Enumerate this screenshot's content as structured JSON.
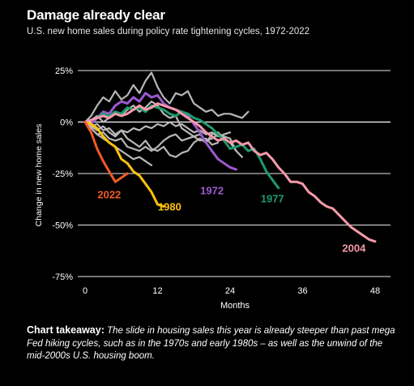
{
  "header": {
    "title": "Damage already clear",
    "subtitle": "U.S. new home sales during policy rate tightening cycles, 1972-2022"
  },
  "takeaway": {
    "label": "Chart takeaway:",
    "text": "The slide in housing sales this year is already steeper than past mega Fed hiking cycles, such as in the 1970s and early 1980s – as well as the unwind of the mid-2000s U.S. housing boom."
  },
  "chart_data": {
    "type": "line",
    "title": "Damage already clear",
    "subtitle": "U.S. new home sales during policy rate tightening cycles, 1972-2022",
    "xlabel": "Months",
    "ylabel": "Change in new home sales",
    "xlim": [
      0,
      49
    ],
    "ylim": [
      -75,
      27
    ],
    "x_ticks": [
      0,
      12,
      24,
      36,
      48
    ],
    "y_ticks": [
      25,
      0,
      -25,
      -50,
      -75
    ],
    "y_tick_labels": [
      "25%",
      "0%",
      "-25%",
      "-50%",
      "-75%"
    ],
    "grid": true,
    "colors": {
      "background": "#000000",
      "gray": "#b8b8b8",
      "grid": "#ffffff"
    },
    "series": [
      {
        "name": "",
        "color": "#b8b8b8",
        "highlight": false,
        "points": [
          [
            0,
            0
          ],
          [
            1,
            3
          ],
          [
            2,
            8
          ],
          [
            3,
            12
          ],
          [
            4,
            10
          ],
          [
            5,
            15
          ],
          [
            6,
            11
          ],
          [
            7,
            13
          ],
          [
            8,
            18
          ],
          [
            9,
            14
          ],
          [
            10,
            20
          ],
          [
            11,
            24
          ],
          [
            12,
            17
          ],
          [
            13,
            12
          ],
          [
            14,
            9
          ],
          [
            15,
            14
          ],
          [
            16,
            13
          ],
          [
            17,
            15
          ],
          [
            18,
            9
          ],
          [
            19,
            7
          ],
          [
            20,
            5
          ],
          [
            21,
            6
          ],
          [
            22,
            3
          ],
          [
            23,
            4
          ],
          [
            24,
            4
          ],
          [
            25,
            3
          ],
          [
            26,
            2
          ],
          [
            27,
            5
          ]
        ]
      },
      {
        "name": "",
        "color": "#b8b8b8",
        "highlight": false,
        "points": [
          [
            0,
            0
          ],
          [
            1,
            -2
          ],
          [
            2,
            -4
          ],
          [
            3,
            -2
          ],
          [
            4,
            -5
          ],
          [
            5,
            -7
          ],
          [
            6,
            -4
          ],
          [
            7,
            -8
          ],
          [
            8,
            -10
          ],
          [
            9,
            -12
          ],
          [
            10,
            -9
          ],
          [
            11,
            -13
          ],
          [
            12,
            -14
          ],
          [
            13,
            -12
          ],
          [
            14,
            -16
          ],
          [
            15,
            -17
          ],
          [
            16,
            -15
          ],
          [
            17,
            -14
          ],
          [
            18,
            -10
          ],
          [
            19,
            -8
          ],
          [
            20,
            -10
          ],
          [
            21,
            -6
          ],
          [
            22,
            -5
          ],
          [
            23,
            -8
          ],
          [
            24,
            -10
          ],
          [
            25,
            -14
          ]
        ]
      },
      {
        "name": "",
        "color": "#b8b8b8",
        "highlight": false,
        "points": [
          [
            0,
            0
          ],
          [
            1,
            -3
          ],
          [
            2,
            -6
          ],
          [
            3,
            -5
          ],
          [
            4,
            -8
          ],
          [
            5,
            -9
          ],
          [
            6,
            -8
          ],
          [
            7,
            -12
          ],
          [
            8,
            -13
          ],
          [
            9,
            -14
          ],
          [
            10,
            -12
          ],
          [
            11,
            -14
          ],
          [
            12,
            -12
          ],
          [
            13,
            -9
          ],
          [
            14,
            -7
          ],
          [
            15,
            -6
          ],
          [
            16,
            -9
          ],
          [
            17,
            -8
          ],
          [
            18,
            -7
          ],
          [
            19,
            -6
          ],
          [
            20,
            -9
          ],
          [
            21,
            -8
          ],
          [
            22,
            -6
          ],
          [
            23,
            -7
          ],
          [
            24,
            -8
          ],
          [
            25,
            -14
          ],
          [
            26,
            -17
          ]
        ]
      },
      {
        "name": "",
        "color": "#b8b8b8",
        "highlight": false,
        "points": [
          [
            0,
            0
          ],
          [
            1,
            1
          ],
          [
            2,
            3
          ],
          [
            3,
            0
          ],
          [
            4,
            2
          ],
          [
            5,
            5
          ],
          [
            6,
            3
          ],
          [
            7,
            6
          ],
          [
            8,
            8
          ],
          [
            9,
            5
          ],
          [
            10,
            7
          ],
          [
            11,
            10
          ],
          [
            12,
            8
          ],
          [
            13,
            4
          ],
          [
            14,
            2
          ],
          [
            15,
            3
          ],
          [
            16,
            -3
          ],
          [
            17,
            -5
          ],
          [
            18,
            -7
          ],
          [
            19,
            -9
          ],
          [
            20,
            -8
          ],
          [
            21,
            -11
          ],
          [
            22,
            -10
          ]
        ]
      },
      {
        "name": "",
        "color": "#b8b8b8",
        "highlight": false,
        "points": [
          [
            0,
            0
          ],
          [
            1,
            -2
          ],
          [
            2,
            -1
          ],
          [
            3,
            -4
          ],
          [
            4,
            -3
          ],
          [
            5,
            -6
          ],
          [
            6,
            -4
          ],
          [
            7,
            -5
          ],
          [
            8,
            -3
          ],
          [
            9,
            -4
          ],
          [
            10,
            -2
          ],
          [
            11,
            -3
          ],
          [
            12,
            -1
          ],
          [
            13,
            -2
          ],
          [
            14,
            0
          ],
          [
            15,
            -2
          ],
          [
            16,
            -1
          ],
          [
            17,
            -3
          ],
          [
            18,
            -5
          ],
          [
            19,
            -4
          ],
          [
            20,
            -6
          ],
          [
            21,
            -5
          ],
          [
            22,
            -7
          ],
          [
            23,
            -6
          ],
          [
            24,
            -5
          ]
        ]
      },
      {
        "name": "",
        "color": "#b8b8b8",
        "highlight": false,
        "points": [
          [
            0,
            0
          ],
          [
            1,
            -3
          ],
          [
            2,
            -6
          ],
          [
            3,
            -8
          ],
          [
            4,
            -10
          ],
          [
            5,
            -12
          ],
          [
            6,
            -14
          ],
          [
            7,
            -16
          ],
          [
            8,
            -18
          ],
          [
            9,
            -17
          ],
          [
            10,
            -19
          ],
          [
            11,
            -21
          ]
        ]
      },
      {
        "name": "1972",
        "color": "#9b59d0",
        "highlight": true,
        "points": [
          [
            0,
            0
          ],
          [
            1,
            -1
          ],
          [
            2,
            2
          ],
          [
            3,
            5
          ],
          [
            4,
            4
          ],
          [
            5,
            8
          ],
          [
            6,
            10
          ],
          [
            7,
            9
          ],
          [
            8,
            12
          ],
          [
            9,
            10
          ],
          [
            10,
            14
          ],
          [
            11,
            12
          ],
          [
            12,
            13
          ],
          [
            13,
            9
          ],
          [
            14,
            7
          ],
          [
            15,
            6
          ],
          [
            16,
            5
          ],
          [
            17,
            3
          ],
          [
            18,
            -1
          ],
          [
            19,
            -5
          ],
          [
            20,
            -10
          ],
          [
            21,
            -14
          ],
          [
            22,
            -18
          ],
          [
            23,
            -20
          ],
          [
            24,
            -22
          ],
          [
            25,
            -23
          ]
        ]
      },
      {
        "name": "1977",
        "color": "#1f9a6e",
        "highlight": true,
        "points": [
          [
            0,
            0
          ],
          [
            1,
            1
          ],
          [
            2,
            2
          ],
          [
            3,
            4
          ],
          [
            4,
            3
          ],
          [
            5,
            5
          ],
          [
            6,
            4
          ],
          [
            7,
            7
          ],
          [
            8,
            6
          ],
          [
            9,
            7
          ],
          [
            10,
            5
          ],
          [
            11,
            8
          ],
          [
            12,
            7
          ],
          [
            13,
            6
          ],
          [
            14,
            4
          ],
          [
            15,
            3
          ],
          [
            16,
            5
          ],
          [
            17,
            4
          ],
          [
            18,
            2
          ],
          [
            19,
            1
          ],
          [
            20,
            -1
          ],
          [
            21,
            -3
          ],
          [
            22,
            -6
          ],
          [
            23,
            -9
          ],
          [
            24,
            -13
          ],
          [
            25,
            -12
          ],
          [
            26,
            -11
          ],
          [
            27,
            -14
          ],
          [
            28,
            -13
          ],
          [
            29,
            -18
          ],
          [
            30,
            -24
          ],
          [
            31,
            -28
          ],
          [
            32,
            -32
          ]
        ]
      },
      {
        "name": "1980",
        "color": "#ffc20e",
        "highlight": true,
        "points": [
          [
            0,
            0
          ],
          [
            1,
            -1
          ],
          [
            2,
            -3
          ],
          [
            3,
            -7
          ],
          [
            4,
            -10
          ],
          [
            5,
            -12
          ],
          [
            6,
            -18
          ],
          [
            7,
            -20
          ],
          [
            8,
            -24
          ],
          [
            9,
            -26
          ],
          [
            10,
            -30
          ],
          [
            11,
            -34
          ],
          [
            12,
            -40
          ],
          [
            13,
            -41
          ]
        ]
      },
      {
        "name": "2004",
        "color": "#f59aa9",
        "highlight": true,
        "points": [
          [
            0,
            0
          ],
          [
            1,
            1
          ],
          [
            2,
            2
          ],
          [
            3,
            3
          ],
          [
            4,
            2
          ],
          [
            5,
            4
          ],
          [
            6,
            3
          ],
          [
            7,
            4
          ],
          [
            8,
            6
          ],
          [
            9,
            8
          ],
          [
            10,
            6
          ],
          [
            11,
            7
          ],
          [
            12,
            9
          ],
          [
            13,
            8
          ],
          [
            14,
            7
          ],
          [
            15,
            6
          ],
          [
            16,
            4
          ],
          [
            17,
            2
          ],
          [
            18,
            0
          ],
          [
            19,
            -2
          ],
          [
            20,
            -5
          ],
          [
            21,
            -7
          ],
          [
            22,
            -9
          ],
          [
            23,
            -8
          ],
          [
            24,
            -10
          ],
          [
            25,
            -9
          ],
          [
            26,
            -11
          ],
          [
            27,
            -10
          ],
          [
            28,
            -14
          ],
          [
            29,
            -16
          ],
          [
            30,
            -15
          ],
          [
            31,
            -18
          ],
          [
            32,
            -22
          ],
          [
            33,
            -25
          ],
          [
            34,
            -29
          ],
          [
            35,
            -29
          ],
          [
            36,
            -30
          ],
          [
            37,
            -34
          ],
          [
            38,
            -36
          ],
          [
            39,
            -39
          ],
          [
            40,
            -41
          ],
          [
            41,
            -42
          ],
          [
            42,
            -45
          ],
          [
            43,
            -48
          ],
          [
            44,
            -51
          ],
          [
            45,
            -53
          ],
          [
            46,
            -55
          ],
          [
            47,
            -57
          ],
          [
            48,
            -58
          ]
        ]
      },
      {
        "name": "2022",
        "color": "#f05a28",
        "highlight": true,
        "points": [
          [
            0,
            0
          ],
          [
            1,
            -5
          ],
          [
            2,
            -13
          ],
          [
            3,
            -19
          ],
          [
            4,
            -24
          ],
          [
            5,
            -29
          ],
          [
            6,
            -27
          ],
          [
            7,
            -25
          ]
        ]
      }
    ],
    "series_labels": [
      {
        "series": "2022",
        "at": [
          4,
          -35
        ]
      },
      {
        "series": "1980",
        "at": [
          14,
          -41
        ]
      },
      {
        "series": "1972",
        "at": [
          21,
          -33
        ]
      },
      {
        "series": "1977",
        "at": [
          31,
          -37
        ]
      },
      {
        "series": "2004",
        "at": [
          44.5,
          -61
        ]
      }
    ]
  }
}
